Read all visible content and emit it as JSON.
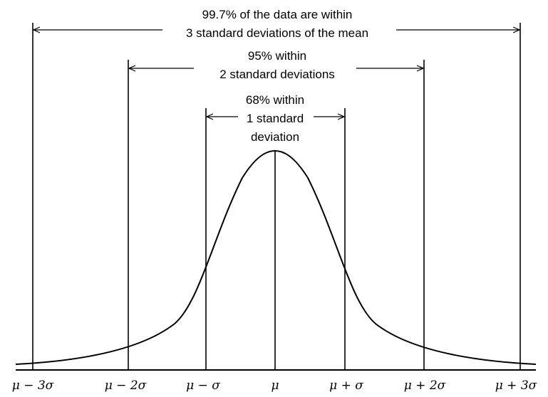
{
  "annotations": {
    "sigma3_line1": "99.7% of the data are within",
    "sigma3_line2": "3 standard deviations of the mean",
    "sigma2_line1": "95% within",
    "sigma2_line2": "2 standard deviations",
    "sigma1_line1": "68% within",
    "sigma1_line2": "1 standard",
    "sigma1_line3": "deviation"
  },
  "axis_labels": {
    "minus3": "μ − 3σ",
    "minus2": "μ − 2σ",
    "minus1": "μ − σ",
    "mean": "μ",
    "plus1": "μ + σ",
    "plus2": "μ + 2σ",
    "plus3": "μ + 3σ"
  },
  "colors": {
    "stroke": "#000000",
    "background": "#ffffff"
  }
}
